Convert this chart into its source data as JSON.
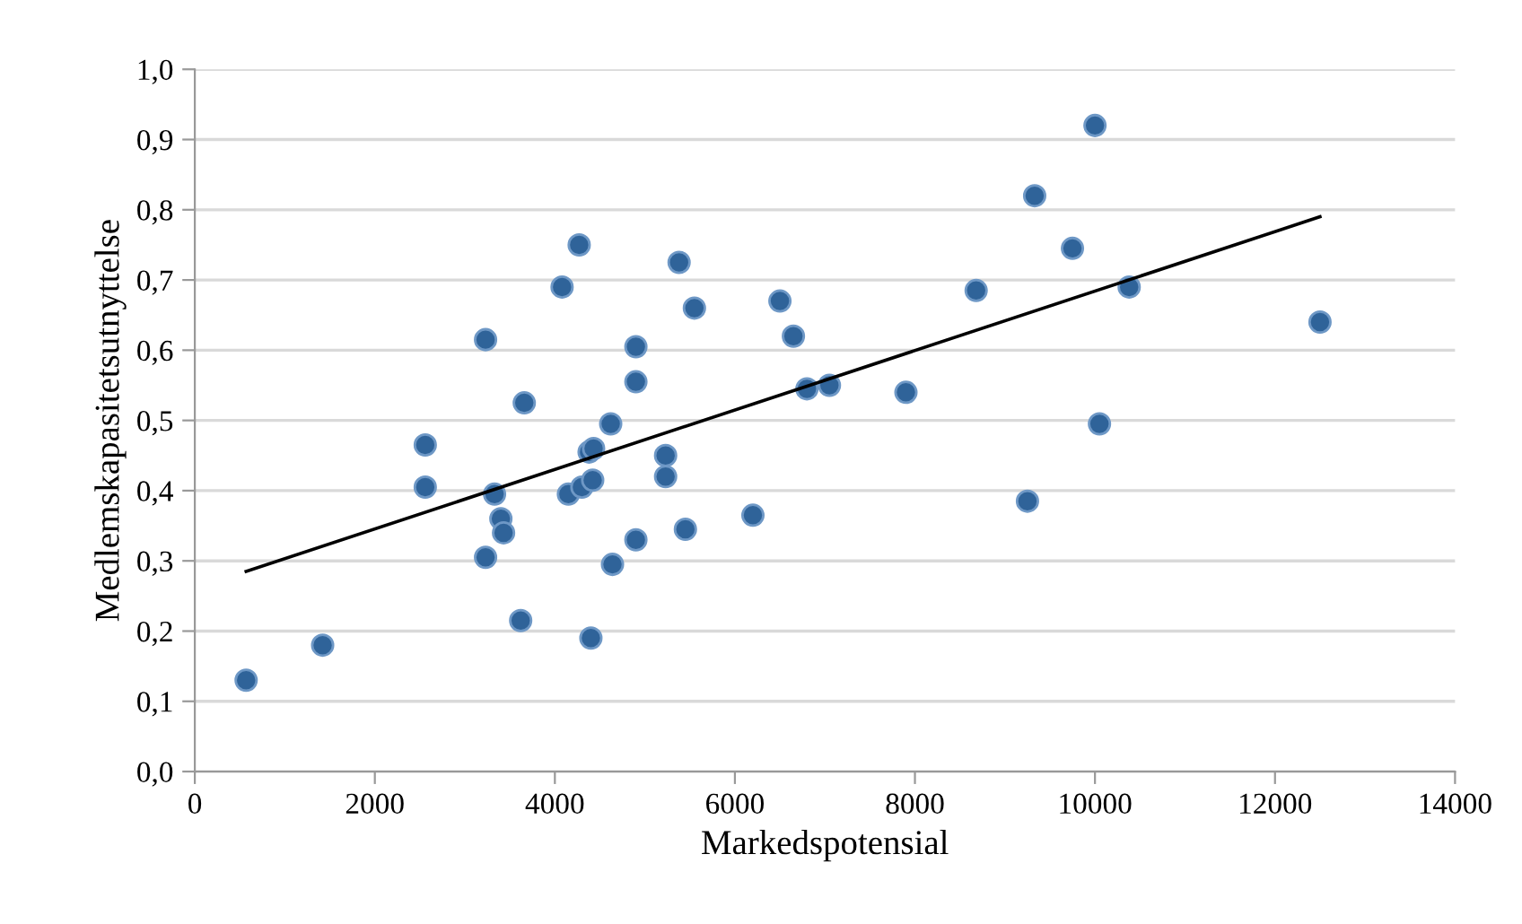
{
  "chart_data": {
    "type": "scatter",
    "xlabel": "Markedspotensial",
    "ylabel": "Medlemskapasitetsutnyttelse",
    "xlim": [
      0,
      14000
    ],
    "xticks": [
      0,
      2000,
      4000,
      6000,
      8000,
      10000,
      12000,
      14000
    ],
    "ylim": [
      0,
      1
    ],
    "yticks": [
      {
        "value": 0,
        "label": "0,0"
      },
      {
        "value": 0.1,
        "label": "0,1"
      },
      {
        "value": 0.2,
        "label": "0,2"
      },
      {
        "value": 0.3,
        "label": "0,3"
      },
      {
        "value": 0.4,
        "label": "0,4"
      },
      {
        "value": 0.5,
        "label": "0,5"
      },
      {
        "value": 0.6,
        "label": "0,6"
      },
      {
        "value": 0.7,
        "label": "0,7"
      },
      {
        "value": 0.8,
        "label": "0,8"
      },
      {
        "value": 0.9,
        "label": "0,9"
      },
      {
        "value": 1.0,
        "label": "1,0"
      }
    ],
    "grid": "y",
    "legend": false,
    "series": [
      {
        "color": "#2f6399",
        "marker": "circle",
        "x": [
          570,
          1420,
          2560,
          2560,
          3230,
          3230,
          3330,
          3400,
          3430,
          3620,
          3660,
          4080,
          4270,
          4150,
          4300,
          4380,
          4430,
          4420,
          4400,
          4620,
          4640,
          4900,
          4900,
          4900,
          5230,
          5230,
          5380,
          5450,
          5550,
          6200,
          6500,
          6650,
          6800,
          7050,
          7900,
          8680,
          9250,
          9330,
          9750,
          10000,
          10050,
          10380,
          12500
        ],
        "values": [
          0.13,
          0.18,
          0.465,
          0.405,
          0.615,
          0.305,
          0.395,
          0.36,
          0.34,
          0.215,
          0.525,
          0.69,
          0.75,
          0.395,
          0.405,
          0.455,
          0.46,
          0.415,
          0.19,
          0.495,
          0.295,
          0.605,
          0.555,
          0.33,
          0.45,
          0.42,
          0.725,
          0.345,
          0.66,
          0.365,
          0.67,
          0.62,
          0.545,
          0.55,
          0.54,
          0.685,
          0.385,
          0.82,
          0.745,
          0.92,
          0.495,
          0.69,
          0.64
        ]
      },
      {
        "type": "line",
        "color": "#000000",
        "marker": "none",
        "line_style": "solid",
        "x": [
          570,
          12500
        ],
        "values": [
          0.285,
          0.79
        ]
      }
    ]
  }
}
